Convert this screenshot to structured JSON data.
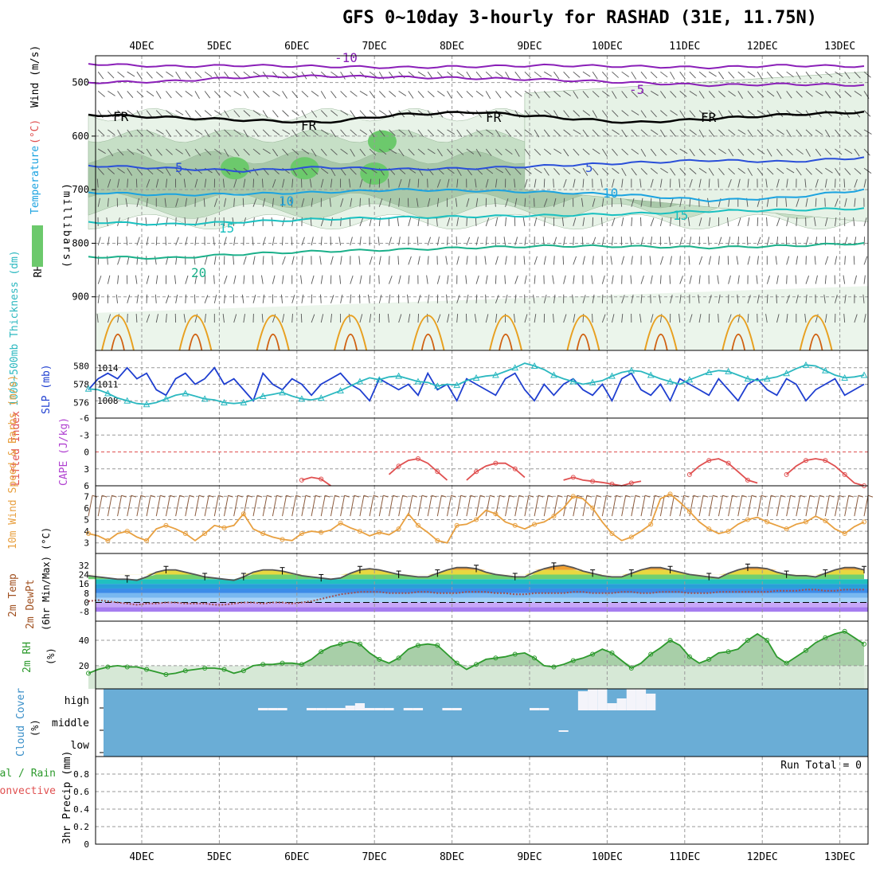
{
  "title": "GFS 0~10day 3-hourly for RASHAD (31E, 11.75N)",
  "days": [
    "4DEC",
    "5DEC",
    "6DEC",
    "7DEC",
    "8DEC",
    "9DEC",
    "10DEC",
    "11DEC",
    "12DEC",
    "13DEC"
  ],
  "colors": {
    "frame": "#000000",
    "grid": "#999999",
    "rh_light": "#e6f2e6",
    "rh_mid": "#c3ddc3",
    "rh_dark": "#a6c6a6",
    "rh_sat": "#6cc96c",
    "wind": "#555555",
    "t_purple": "#8a1fb8",
    "t_blue": "#2a4fd9",
    "t_lightblue": "#1ba3e0",
    "t_cyan": "#19c0c0",
    "t_green": "#1bb08a",
    "t_orange": "#e8a020",
    "slp": "#1f3fd0",
    "thick": "#2bb8c0",
    "li": "#e05050",
    "ws": "#e8a040",
    "barb": "#8b5a3c",
    "rh2m": "#2d9a2d",
    "cloud_bg": "#6aadd6",
    "cloud_fill": "#f4f4fa",
    "precip": "#000000"
  },
  "chart_data": [
    {
      "type": "heatmap",
      "name": "upper-air",
      "ylabel_parts": [
        "RH (%)",
        "Temperature",
        "(°C)",
        "Wind (m/s)"
      ],
      "yunit": "(millibars)",
      "ylim": [
        1000,
        450
      ],
      "yticks": [
        500,
        600,
        700,
        800,
        900
      ],
      "contour_labels": [
        "-10",
        "-5",
        "FR",
        "FR",
        "FR",
        "FR",
        "5",
        "5",
        "10",
        "10",
        "15",
        "15",
        "20"
      ],
      "isotherms": [
        {
          "label": "-10",
          "color": "purple",
          "p": [
            465,
            470,
            468,
            470,
            472,
            470,
            468,
            470,
            472,
            468,
            470
          ]
        },
        {
          "label": "-5",
          "color": "purple",
          "p": [
            500,
            498,
            490,
            488,
            490,
            492,
            495,
            500,
            505,
            503,
            505
          ]
        },
        {
          "label": "FR",
          "color": "black",
          "p": [
            560,
            565,
            570,
            575,
            560,
            555,
            565,
            575,
            568,
            560,
            555
          ]
        },
        {
          "label": "5",
          "color": "blue",
          "p": [
            655,
            660,
            665,
            658,
            662,
            660,
            655,
            650,
            645,
            648,
            640
          ]
        },
        {
          "label": "10",
          "color": "lightblue",
          "p": [
            705,
            710,
            708,
            705,
            700,
            702,
            705,
            710,
            720,
            715,
            700
          ]
        },
        {
          "label": "15",
          "color": "cyan",
          "p": [
            760,
            765,
            760,
            755,
            752,
            750,
            748,
            745,
            740,
            738,
            735
          ]
        },
        {
          "label": "20",
          "color": "green",
          "p": [
            825,
            828,
            820,
            815,
            812,
            808,
            805,
            806,
            808,
            805,
            800
          ]
        }
      ]
    },
    {
      "type": "line",
      "name": "slp-thickness",
      "ylabel_left": "1000~500mb Thickness (dm)",
      "ylabel_right": "SLP (mb)",
      "yticks_left": [
        576,
        578,
        580
      ],
      "yticks_right": [
        1008,
        1011,
        1014
      ],
      "series": [
        {
          "name": "SLP (mb)",
          "values": [
            1010,
            1012,
            1013,
            1012,
            1014,
            1012,
            1013,
            1010,
            1009,
            1012,
            1013,
            1011,
            1012,
            1014,
            1011,
            1012,
            1010,
            1008,
            1013,
            1011,
            1010,
            1012,
            1011,
            1009,
            1011,
            1012,
            1013,
            1011,
            1010,
            1008,
            1012,
            1011,
            1010,
            1011,
            1009,
            1013,
            1010,
            1011,
            1008,
            1012,
            1011,
            1010,
            1009,
            1012,
            1013,
            1010,
            1008,
            1011,
            1009,
            1011,
            1012,
            1010,
            1009,
            1011,
            1008,
            1012,
            1013,
            1010,
            1009,
            1011,
            1008,
            1012,
            1011,
            1010,
            1009,
            1012,
            1010,
            1008,
            1011,
            1012,
            1010,
            1009,
            1012,
            1011,
            1008,
            1010,
            1011,
            1012,
            1009,
            1010,
            1011
          ]
        },
        {
          "name": "Thickness (dm)",
          "values": [
            577.5,
            577.4,
            577.0,
            576.5,
            576.2,
            575.9,
            575.8,
            576.0,
            576.4,
            576.8,
            577.0,
            576.7,
            576.4,
            576.3,
            576.0,
            575.9,
            576.0,
            576.3,
            576.7,
            576.9,
            577.1,
            576.7,
            576.4,
            576.3,
            576.5,
            576.9,
            577.3,
            577.8,
            578.3,
            578.7,
            578.5,
            578.8,
            578.9,
            578.6,
            578.3,
            578.2,
            577.8,
            578.0,
            577.9,
            578.4,
            578.7,
            578.9,
            579.0,
            579.4,
            579.8,
            580.3,
            580.0,
            579.6,
            579.0,
            578.6,
            578.3,
            578.0,
            578.2,
            578.4,
            578.9,
            579.3,
            579.5,
            579.4,
            579.0,
            578.6,
            578.3,
            578.0,
            578.5,
            578.9,
            579.3,
            579.5,
            579.4,
            579.0,
            578.6,
            578.4,
            578.6,
            578.8,
            579.2,
            579.7,
            580.1,
            580.0,
            579.5,
            579.0,
            578.7,
            578.8,
            579.0
          ]
        }
      ]
    },
    {
      "type": "line",
      "name": "li-cape",
      "ylabel_left": "Lifted Index",
      "ylabel_right": "CAPE (J/kg)",
      "yticks": [
        -6,
        -3,
        0,
        3,
        6
      ],
      "ylim": [
        -6,
        6
      ],
      "series": [
        {
          "name": "Lifted Index",
          "values": [
            null,
            null,
            null,
            null,
            null,
            null,
            null,
            null,
            null,
            null,
            null,
            null,
            null,
            null,
            null,
            null,
            null,
            null,
            null,
            null,
            null,
            null,
            5,
            4.5,
            4.8,
            6,
            null,
            null,
            null,
            null,
            null,
            4,
            2.5,
            1.5,
            1.2,
            2,
            3.5,
            5,
            null,
            5,
            3.5,
            2.5,
            2,
            2,
            3,
            4.5,
            null,
            null,
            null,
            5,
            4.5,
            5,
            5.2,
            5.4,
            5.7,
            6,
            5.5,
            5.2,
            null,
            null,
            null,
            null,
            4,
            2.5,
            1.5,
            1.2,
            2,
            3.5,
            5,
            5.5,
            null,
            null,
            4,
            2.5,
            1.5,
            1.2,
            1.5,
            2.5,
            4,
            5.5,
            6
          ]
        }
      ]
    },
    {
      "type": "line",
      "name": "wind10m",
      "ylabel": "10m Wind Speed & Barbs (m/s)",
      "yticks": [
        3,
        4,
        5,
        6,
        7
      ],
      "series": [
        {
          "name": "10m Wind Speed",
          "values": [
            3.8,
            3.6,
            3.2,
            3.8,
            4.0,
            3.5,
            3.2,
            4.2,
            4.5,
            4.2,
            3.8,
            3.2,
            3.8,
            4.5,
            4.3,
            4.5,
            5.5,
            4.2,
            3.8,
            3.5,
            3.3,
            3.2,
            3.8,
            4.0,
            3.9,
            4.1,
            4.7,
            4.3,
            4.0,
            3.6,
            3.9,
            3.7,
            4.2,
            5.5,
            4.5,
            3.9,
            3.2,
            3.0,
            4.5,
            4.6,
            5.0,
            5.8,
            5.5,
            4.8,
            4.5,
            4.2,
            4.6,
            4.8,
            5.3,
            6.0,
            7.0,
            6.8,
            6.0,
            4.8,
            3.8,
            3.2,
            3.5,
            4.0,
            4.6,
            6.8,
            7.2,
            6.5,
            5.7,
            4.8,
            4.2,
            3.8,
            4.0,
            4.6,
            5.0,
            5.2,
            4.8,
            4.5,
            4.2,
            4.6,
            4.8,
            5.3,
            4.9,
            4.2,
            3.8,
            4.4,
            4.8
          ]
        }
      ]
    },
    {
      "type": "area",
      "name": "temp2m",
      "ylabel": "2m Temp 2m DewPt (6hr Min/Max) (°C)",
      "yticks": [
        -8,
        0,
        8,
        16,
        24,
        32
      ],
      "series": [
        {
          "name": "2m Temp",
          "values": [
            23,
            22,
            21,
            20,
            20,
            19,
            22,
            26,
            28,
            28,
            26,
            24,
            22,
            21,
            20,
            19,
            22,
            26,
            28,
            28,
            27,
            25,
            23,
            22,
            21,
            20,
            21,
            25,
            28,
            29,
            28,
            26,
            24,
            23,
            22,
            22,
            25,
            28,
            30,
            30,
            29,
            26,
            24,
            23,
            22,
            22,
            26,
            29,
            31,
            32,
            30,
            27,
            25,
            23,
            22,
            22,
            25,
            28,
            30,
            30,
            28,
            26,
            24,
            23,
            22,
            21,
            25,
            28,
            30,
            30,
            29,
            26,
            24,
            23,
            23,
            22,
            25,
            28,
            30,
            30,
            28
          ]
        },
        {
          "name": "2m DewPt",
          "values": [
            1,
            2,
            1,
            0,
            -1,
            -2,
            -1,
            -1,
            0,
            0,
            -1,
            -1,
            -1,
            -2,
            -2,
            -1,
            0,
            0,
            -1,
            0,
            0,
            -1,
            0,
            1,
            3,
            5,
            7,
            8,
            9,
            9,
            9,
            8,
            8,
            8,
            9,
            9,
            8,
            8,
            8,
            9,
            9,
            9,
            8,
            8,
            7,
            7,
            8,
            8,
            8,
            8,
            9,
            9,
            8,
            8,
            8,
            9,
            9,
            8,
            8,
            9,
            9,
            9,
            8,
            8,
            8,
            9,
            9,
            9,
            9,
            9,
            9,
            10,
            10,
            10,
            11,
            11,
            10,
            10,
            11,
            11,
            11
          ]
        }
      ]
    },
    {
      "type": "line",
      "name": "rh2m",
      "ylabel": "2m RH (%)",
      "yticks": [
        20,
        40
      ],
      "series": [
        {
          "name": "2m RH",
          "values": [
            14,
            17,
            19,
            20,
            19,
            19,
            17,
            15,
            13,
            14,
            16,
            17,
            18,
            18,
            17,
            14,
            16,
            20,
            21,
            21,
            22,
            22,
            21,
            25,
            31,
            35,
            37,
            39,
            37,
            30,
            25,
            22,
            26,
            33,
            36,
            37,
            36,
            29,
            22,
            17,
            21,
            25,
            26,
            27,
            29,
            30,
            26,
            20,
            19,
            21,
            24,
            26,
            29,
            33,
            30,
            24,
            18,
            22,
            29,
            34,
            40,
            36,
            27,
            22,
            25,
            30,
            31,
            33,
            40,
            45,
            40,
            27,
            22,
            27,
            32,
            38,
            42,
            45,
            47,
            42,
            37
          ]
        }
      ]
    },
    {
      "type": "bar",
      "name": "cloud",
      "ylabel": "Cloud Cover (%)",
      "levels": [
        "high",
        "middle",
        "low"
      ],
      "high_cover": [
        0,
        0,
        0,
        0,
        0,
        0,
        0,
        0,
        0,
        0,
        0,
        0,
        0,
        0,
        0,
        0,
        0,
        0,
        1,
        1,
        1,
        0,
        0,
        1,
        1,
        1,
        1,
        2,
        3,
        1,
        1,
        1,
        0,
        1,
        1,
        0,
        0,
        1,
        1,
        0,
        0,
        0,
        0,
        0,
        0,
        0,
        1,
        1,
        0,
        0,
        0,
        8,
        9,
        9,
        3,
        5,
        9,
        9,
        7,
        0,
        0,
        0,
        0,
        0,
        0,
        0,
        0,
        0,
        0,
        0,
        0,
        0,
        0,
        0,
        0,
        0,
        0,
        0,
        0,
        0,
        0
      ],
      "mid_cover": [
        0,
        0,
        0,
        0,
        0,
        0,
        0,
        0,
        0,
        0,
        0,
        0,
        0,
        0,
        0,
        0,
        0,
        0,
        0,
        0,
        0,
        0,
        0,
        0,
        0,
        0,
        0,
        0,
        0,
        0,
        0,
        0,
        0,
        0,
        0,
        0,
        0,
        0,
        0,
        0,
        0,
        0,
        0,
        0,
        0,
        0,
        0,
        0,
        0,
        1,
        0,
        0,
        0,
        0,
        0,
        0,
        0,
        0,
        0,
        0,
        0,
        0,
        0,
        0,
        0,
        0,
        0,
        0,
        0,
        0,
        0,
        0,
        0,
        0,
        0,
        0,
        0,
        0,
        0,
        0,
        0
      ]
    },
    {
      "type": "bar",
      "name": "precip",
      "ylabel": "3hr Precip (mm)",
      "ylabel_left": "Total / Rain",
      "ylabel_left2": "Convective",
      "yticks": [
        0,
        0.2,
        0.4,
        0.6,
        0.8
      ],
      "ylim": [
        0,
        1
      ],
      "run_total_label": "Run Total = 0",
      "values": []
    }
  ]
}
